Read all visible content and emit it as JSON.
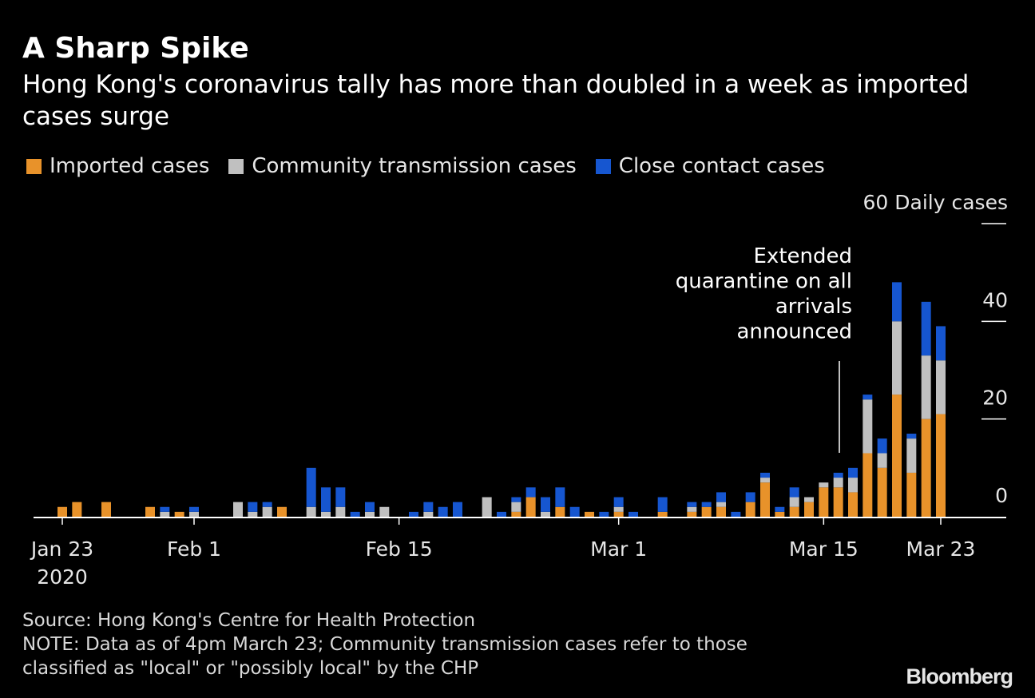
{
  "title": "A Sharp Spike",
  "subtitle": "Hong Kong's coronavirus tally has more than doubled in a week as imported cases surge",
  "legend": [
    {
      "key": "imported",
      "label": "Imported cases",
      "color": "#e8922a"
    },
    {
      "key": "community",
      "label": "Community transmission cases",
      "color": "#c0c0c0"
    },
    {
      "key": "close",
      "label": "Close contact cases",
      "color": "#1656d0"
    }
  ],
  "annotation": "Extended quarantine on all arrivals announced",
  "footer": {
    "source": "Source: Hong Kong's Centre for Health Protection",
    "note_line1": "NOTE: Data as of 4pm March 23; Community transmission cases refer to those",
    "note_line2": "classified as \"local\" or \"possibly local\" by the CHP"
  },
  "brand": "Bloomberg",
  "chart_data": {
    "type": "bar",
    "stacked": true,
    "ylabel": "Daily cases",
    "ylim": [
      0,
      60
    ],
    "yticks": [
      0,
      20,
      40,
      60
    ],
    "ytick_labels": [
      "0",
      "20",
      "40",
      "60 Daily cases"
    ],
    "x_start": "2020-01-23",
    "x_end": "2020-03-23",
    "x_ticks": [
      {
        "date": "2020-01-23",
        "label": "Jan 23",
        "sublabel": "2020"
      },
      {
        "date": "2020-02-01",
        "label": "Feb 1"
      },
      {
        "date": "2020-02-15",
        "label": "Feb 15"
      },
      {
        "date": "2020-03-01",
        "label": "Mar 1"
      },
      {
        "date": "2020-03-15",
        "label": "Mar 15"
      },
      {
        "date": "2020-03-23",
        "label": "Mar 23"
      }
    ],
    "annotation_date": "2020-03-17",
    "categories": [
      "2020-01-23",
      "2020-01-24",
      "2020-01-25",
      "2020-01-26",
      "2020-01-27",
      "2020-01-28",
      "2020-01-29",
      "2020-01-30",
      "2020-01-31",
      "2020-02-01",
      "2020-02-02",
      "2020-02-03",
      "2020-02-04",
      "2020-02-05",
      "2020-02-06",
      "2020-02-07",
      "2020-02-08",
      "2020-02-09",
      "2020-02-10",
      "2020-02-11",
      "2020-02-12",
      "2020-02-13",
      "2020-02-14",
      "2020-02-15",
      "2020-02-16",
      "2020-02-17",
      "2020-02-18",
      "2020-02-19",
      "2020-02-20",
      "2020-02-21",
      "2020-02-22",
      "2020-02-23",
      "2020-02-24",
      "2020-02-25",
      "2020-02-26",
      "2020-02-27",
      "2020-02-28",
      "2020-02-29",
      "2020-03-01",
      "2020-03-02",
      "2020-03-03",
      "2020-03-04",
      "2020-03-05",
      "2020-03-06",
      "2020-03-07",
      "2020-03-08",
      "2020-03-09",
      "2020-03-10",
      "2020-03-11",
      "2020-03-12",
      "2020-03-13",
      "2020-03-14",
      "2020-03-15",
      "2020-03-16",
      "2020-03-17",
      "2020-03-18",
      "2020-03-19",
      "2020-03-20",
      "2020-03-21",
      "2020-03-22",
      "2020-03-23"
    ],
    "series": [
      {
        "name": "Imported cases",
        "key": "imported",
        "values": [
          2,
          3,
          0,
          3,
          0,
          0,
          2,
          0,
          1,
          0,
          0,
          0,
          0,
          0,
          0,
          2,
          0,
          0,
          0,
          0,
          0,
          0,
          0,
          0,
          0,
          0,
          0,
          0,
          0,
          0,
          0,
          1,
          4,
          0,
          2,
          0,
          1,
          0,
          1,
          0,
          0,
          1,
          0,
          1,
          2,
          2,
          0,
          3,
          7,
          1,
          2,
          3,
          6,
          6,
          5,
          13,
          10,
          25,
          9,
          20,
          21
        ]
      },
      {
        "name": "Community transmission cases",
        "key": "community",
        "values": [
          0,
          0,
          0,
          0,
          0,
          0,
          0,
          1,
          0,
          1,
          0,
          0,
          3,
          1,
          2,
          0,
          0,
          2,
          1,
          2,
          0,
          1,
          2,
          0,
          0,
          1,
          0,
          0,
          0,
          4,
          0,
          2,
          0,
          1,
          0,
          0,
          0,
          0,
          1,
          0,
          0,
          0,
          0,
          1,
          0,
          1,
          0,
          0,
          1,
          0,
          2,
          1,
          1,
          2,
          3,
          11,
          3,
          15,
          7,
          13,
          11
        ]
      },
      {
        "name": "Close contact cases",
        "key": "close",
        "values": [
          0,
          0,
          0,
          0,
          0,
          0,
          0,
          1,
          0,
          1,
          0,
          0,
          0,
          2,
          1,
          0,
          0,
          8,
          5,
          4,
          1,
          2,
          0,
          0,
          1,
          2,
          2,
          3,
          0,
          0,
          1,
          1,
          2,
          3,
          4,
          2,
          0,
          1,
          2,
          1,
          0,
          3,
          0,
          1,
          1,
          2,
          1,
          2,
          1,
          1,
          2,
          0,
          0,
          1,
          2,
          1,
          3,
          8,
          1,
          11,
          7
        ]
      }
    ]
  }
}
